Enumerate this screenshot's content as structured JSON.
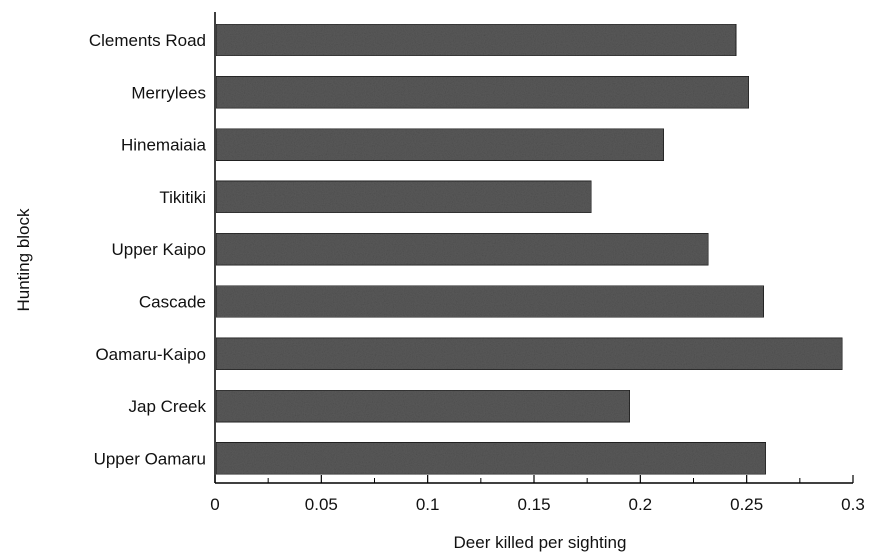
{
  "chart_data": {
    "type": "bar",
    "orientation": "horizontal",
    "categories": [
      "Clements Road",
      "Merrylees",
      "Hinemaiaia",
      "Tikitiki",
      "Upper Kaipo",
      "Cascade",
      "Oamaru-Kaipo",
      "Jap Creek",
      "Upper Oamaru"
    ],
    "values": [
      0.245,
      0.251,
      0.211,
      0.177,
      0.232,
      0.258,
      0.295,
      0.195,
      0.259
    ],
    "xlabel": "Deer killed per sighting",
    "ylabel": "Hunting block",
    "xlim": [
      0,
      0.3
    ],
    "xticks": [
      "0",
      "0.05",
      "0.1",
      "0.15",
      "0.2",
      "0.25",
      "0.3"
    ],
    "xtick_values": [
      0,
      0.05,
      0.1,
      0.15,
      0.2,
      0.25,
      0.3
    ],
    "grid": false,
    "bar_color": "#5a5a5a"
  }
}
